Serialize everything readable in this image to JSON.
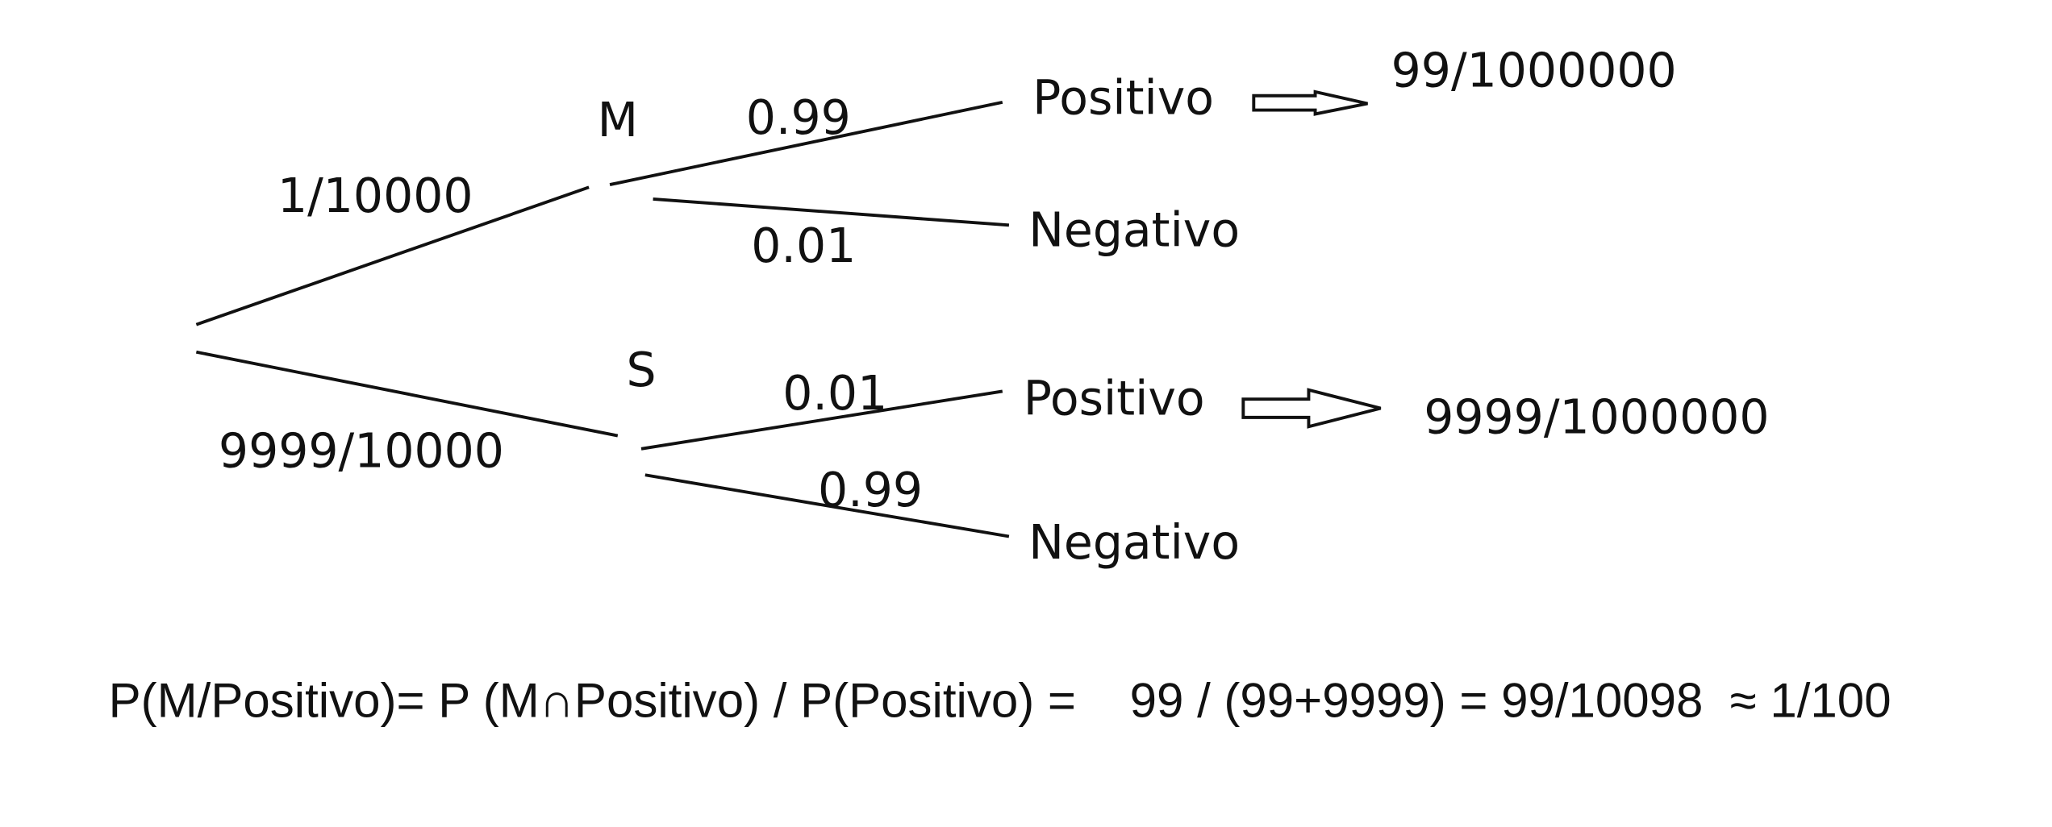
{
  "nodes": [
    {
      "label": "M"
    },
    {
      "label": "S"
    }
  ],
  "edges": [
    {
      "label": "1/10000"
    },
    {
      "label": "9999/10000"
    },
    {
      "label": "0.99"
    },
    {
      "label": "0.01"
    },
    {
      "label": "0.01"
    },
    {
      "label": "0.99"
    }
  ],
  "outcomes": [
    {
      "label": "Positivo",
      "result": "99/1000000"
    },
    {
      "label": "Negativo"
    },
    {
      "label": "Positivo",
      "result": "9999/1000000"
    },
    {
      "label": "Negativo"
    }
  ],
  "formula": "P(M/Positivo)= P (M∩Positivo) / P(Positivo) =    99 / (99+9999) = 99/10098  ≈ 1/100"
}
